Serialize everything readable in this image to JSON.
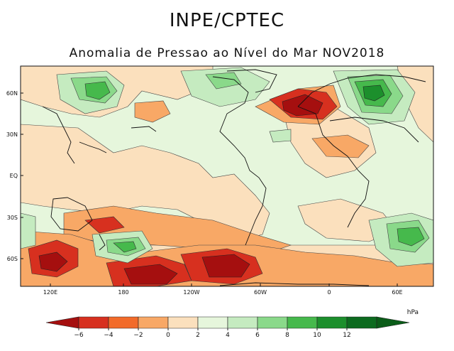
{
  "title": "INPE/CPTEC",
  "subtitle": "Anomalia de Pressao ao Nível do Mar NOV2018",
  "map": {
    "type": "contour-map",
    "variable": "Sea level pressure anomaly",
    "units": "hPa",
    "lat_ticks": [
      "60N",
      "30N",
      "EQ",
      "30S",
      "60S"
    ],
    "lon_ticks": [
      "120E",
      "180",
      "120W",
      "60W",
      "0",
      "60E"
    ],
    "colorbar": {
      "units": "hPa",
      "labels": [
        "-6",
        "-4",
        "-2",
        "0",
        "2",
        "4",
        "6",
        "8",
        "10",
        "12"
      ],
      "colors": [
        "#a50f0f",
        "#d7301f",
        "#f26b2a",
        "#f8a866",
        "#fbe0bd",
        "#e6f6dc",
        "#c5ebc0",
        "#8ad98a",
        "#46b94c",
        "#1c8f2c",
        "#0c6b1f",
        "#0a5c18"
      ]
    }
  },
  "colors": {
    "neg_strong": "#a50f0f",
    "neg_mid": "#d7301f",
    "neg_weak": "#f26b2a",
    "neg_light": "#f8a866",
    "neutral_warm": "#fbe0bd",
    "neutral_cool": "#e6f6dc",
    "pos_light": "#c5ebc0",
    "pos_mid": "#8ad98a",
    "pos_strong": "#46b94c",
    "pos_max": "#1c8f2c"
  }
}
